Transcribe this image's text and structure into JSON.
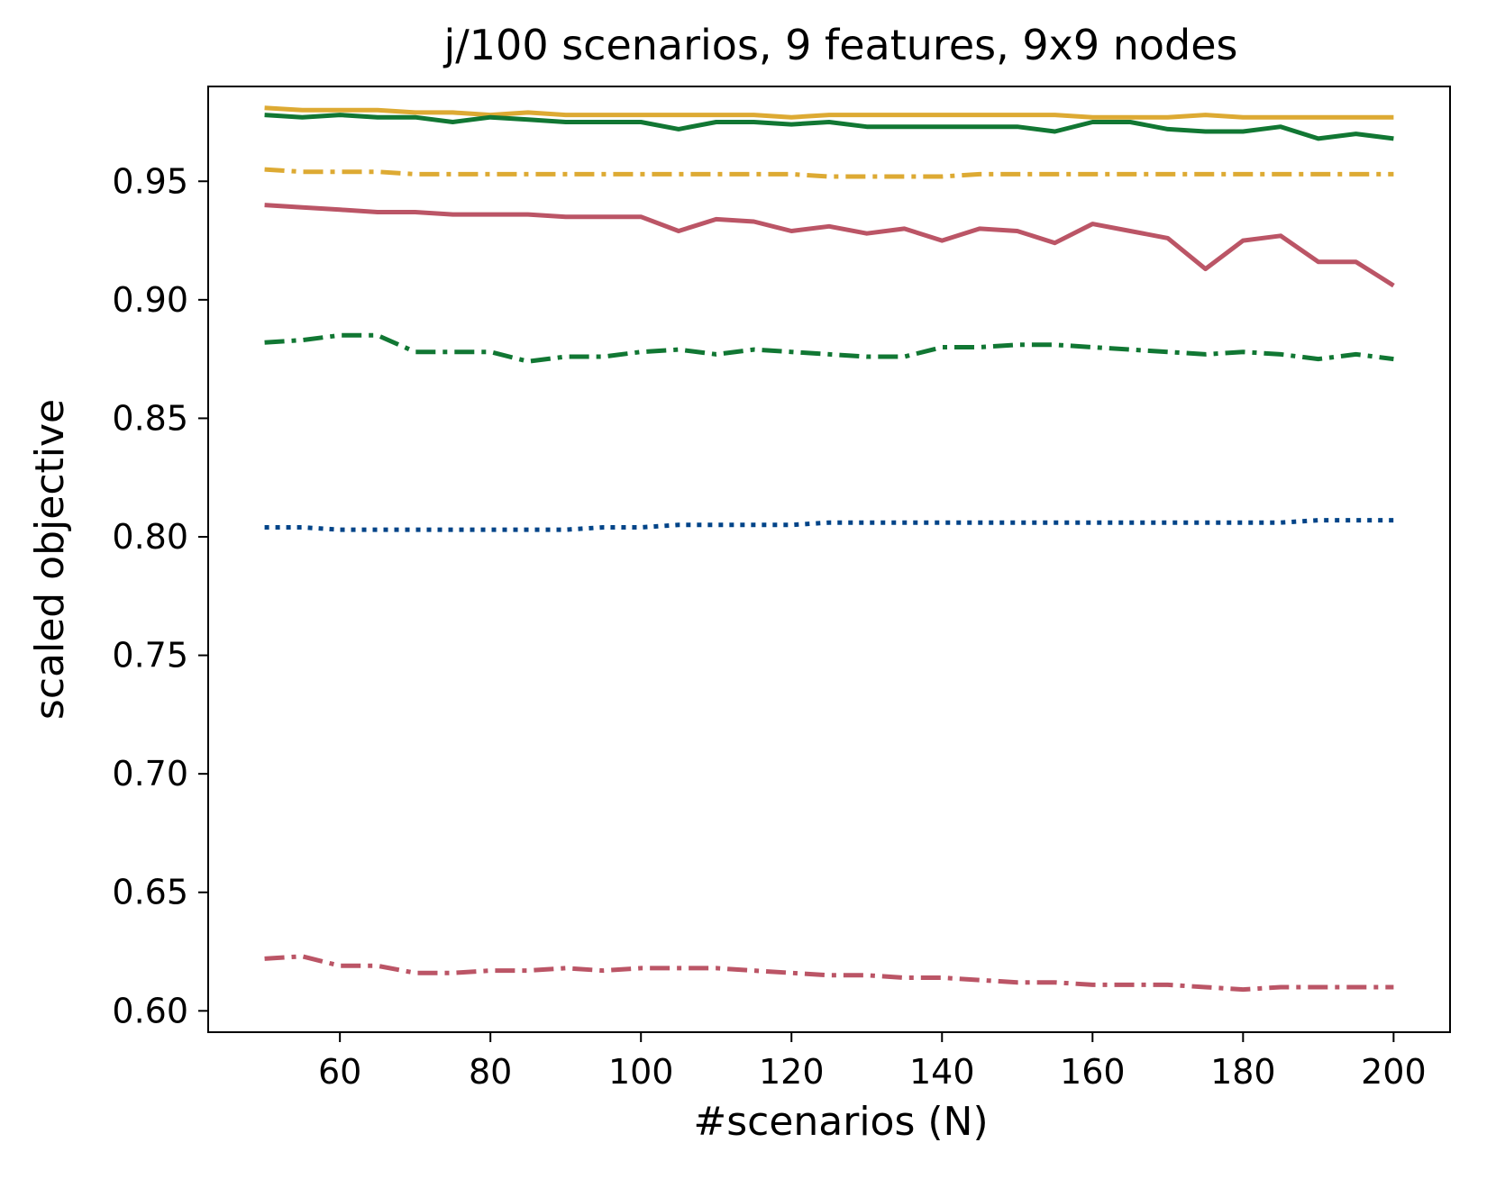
{
  "chart_data": {
    "type": "line",
    "title": "j/100 scenarios, 9 features, 9x9 nodes",
    "xlabel": "#scenarios (N)",
    "ylabel": "scaled objective",
    "xlim": [
      42.5,
      207.5
    ],
    "ylim": [
      0.591,
      0.99
    ],
    "xticks": [
      60,
      80,
      100,
      120,
      140,
      160,
      180,
      200
    ],
    "yticks": [
      0.6,
      0.65,
      0.7,
      0.75,
      0.8,
      0.85,
      0.9,
      0.95
    ],
    "ytick_labels": [
      "0.60",
      "0.65",
      "0.70",
      "0.75",
      "0.80",
      "0.85",
      "0.90",
      "0.95"
    ],
    "grid": false,
    "legend": "none",
    "x": [
      50,
      55,
      60,
      65,
      70,
      75,
      80,
      85,
      90,
      95,
      100,
      105,
      110,
      115,
      120,
      125,
      130,
      135,
      140,
      145,
      150,
      155,
      160,
      165,
      170,
      175,
      180,
      185,
      190,
      195,
      200
    ],
    "series": [
      {
        "color": "#DDAA33",
        "style": "solid",
        "values": [
          0.981,
          0.98,
          0.98,
          0.98,
          0.979,
          0.979,
          0.978,
          0.979,
          0.978,
          0.978,
          0.978,
          0.978,
          0.978,
          0.978,
          0.977,
          0.978,
          0.978,
          0.978,
          0.978,
          0.978,
          0.978,
          0.978,
          0.977,
          0.977,
          0.977,
          0.978,
          0.977,
          0.977,
          0.977,
          0.977,
          0.977
        ]
      },
      {
        "color": "#117733",
        "style": "solid",
        "values": [
          0.978,
          0.977,
          0.978,
          0.977,
          0.977,
          0.975,
          0.977,
          0.976,
          0.975,
          0.975,
          0.975,
          0.972,
          0.975,
          0.975,
          0.974,
          0.975,
          0.973,
          0.973,
          0.973,
          0.973,
          0.973,
          0.971,
          0.975,
          0.975,
          0.972,
          0.971,
          0.971,
          0.973,
          0.968,
          0.97,
          0.968
        ]
      },
      {
        "color": "#DDAA33",
        "style": "dashdot",
        "values": [
          0.955,
          0.954,
          0.954,
          0.954,
          0.953,
          0.953,
          0.953,
          0.953,
          0.953,
          0.953,
          0.953,
          0.953,
          0.953,
          0.953,
          0.953,
          0.952,
          0.952,
          0.952,
          0.952,
          0.953,
          0.953,
          0.953,
          0.953,
          0.953,
          0.953,
          0.953,
          0.953,
          0.953,
          0.953,
          0.953,
          0.953
        ]
      },
      {
        "color": "#BB5566",
        "style": "solid",
        "values": [
          0.94,
          0.939,
          0.938,
          0.937,
          0.937,
          0.936,
          0.936,
          0.936,
          0.935,
          0.935,
          0.935,
          0.929,
          0.934,
          0.933,
          0.929,
          0.931,
          0.928,
          0.93,
          0.925,
          0.93,
          0.929,
          0.924,
          0.932,
          0.929,
          0.926,
          0.913,
          0.925,
          0.927,
          0.916,
          0.916,
          0.906
        ]
      },
      {
        "color": "#117733",
        "style": "dashdot",
        "values": [
          0.882,
          0.883,
          0.885,
          0.885,
          0.878,
          0.878,
          0.878,
          0.874,
          0.876,
          0.876,
          0.878,
          0.879,
          0.877,
          0.879,
          0.878,
          0.877,
          0.876,
          0.876,
          0.88,
          0.88,
          0.881,
          0.881,
          0.88,
          0.879,
          0.878,
          0.877,
          0.878,
          0.877,
          0.875,
          0.877,
          0.875
        ]
      },
      {
        "color": "#004488",
        "style": "dotted",
        "values": [
          0.804,
          0.804,
          0.803,
          0.803,
          0.803,
          0.803,
          0.803,
          0.803,
          0.803,
          0.804,
          0.804,
          0.805,
          0.805,
          0.805,
          0.805,
          0.806,
          0.806,
          0.806,
          0.806,
          0.806,
          0.806,
          0.806,
          0.806,
          0.806,
          0.806,
          0.806,
          0.806,
          0.806,
          0.807,
          0.807,
          0.807
        ]
      },
      {
        "color": "#BB5566",
        "style": "dashdot",
        "values": [
          0.622,
          0.623,
          0.619,
          0.619,
          0.616,
          0.616,
          0.617,
          0.617,
          0.618,
          0.617,
          0.618,
          0.618,
          0.618,
          0.617,
          0.616,
          0.615,
          0.615,
          0.614,
          0.614,
          0.613,
          0.612,
          0.612,
          0.611,
          0.611,
          0.611,
          0.61,
          0.609,
          0.61,
          0.61,
          0.61,
          0.61
        ]
      }
    ]
  }
}
